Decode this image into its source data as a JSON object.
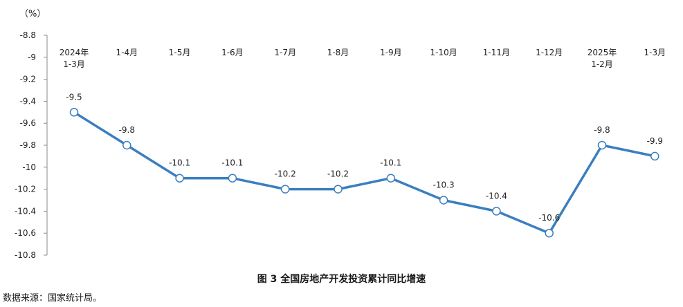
{
  "chart_data": {
    "type": "line",
    "title": "图 3  全国房地产开发投资累计同比增速",
    "unit_label": "（%）",
    "categories": [
      [
        "2024年",
        "1-3月"
      ],
      [
        "1-4月"
      ],
      [
        "1-5月"
      ],
      [
        "1-6月"
      ],
      [
        "1-7月"
      ],
      [
        "1-8月"
      ],
      [
        "1-9月"
      ],
      [
        "1-10月"
      ],
      [
        "1-11月"
      ],
      [
        "1-12月"
      ],
      [
        "2025年",
        "1-2月"
      ],
      [
        "1-3月"
      ]
    ],
    "series": [
      {
        "values": [
          -9.5,
          -9.8,
          -10.1,
          -10.1,
          -10.2,
          -10.2,
          -10.1,
          -10.3,
          -10.4,
          -10.6,
          -9.8,
          -9.9
        ],
        "labels": [
          "-9.5",
          "-9.8",
          "-10.1",
          "-10.1",
          "-10.2",
          "-10.2",
          "-10.1",
          "-10.3",
          "-10.4",
          "-10.6",
          "-9.8",
          "-9.9"
        ],
        "color": "#3a7fbf"
      }
    ],
    "y_ticks": [
      "-8.8",
      "-9",
      "-9.2",
      "-9.4",
      "-9.6",
      "-9.8",
      "-10",
      "-10.2",
      "-10.4",
      "-10.6",
      "-10.8"
    ],
    "ylim": [
      -10.8,
      -8.8
    ],
    "y_reversed": true,
    "grid": false,
    "legend": "none"
  },
  "footer": {
    "source": "数据来源：国家统计局。"
  }
}
